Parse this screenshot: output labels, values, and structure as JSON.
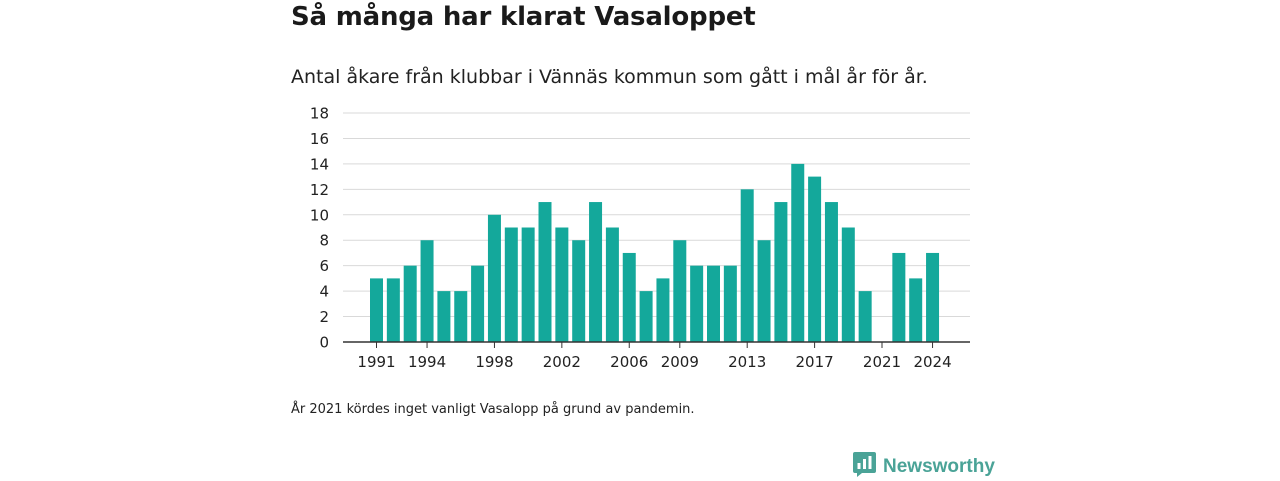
{
  "title": "Så många har klarat Vasaloppet",
  "subtitle": "Antal åkare från klubbar i Vännäs kommun som gått i mål år för år.",
  "footnote": "År 2021 kördes inget vanligt Vasalopp på grund av pandemin.",
  "brand": {
    "name": "Newsworthy",
    "icon": "newsworthy-logo-icon",
    "color": "#4aa397"
  },
  "chart_data": {
    "type": "bar",
    "bar_color": "#14a89b",
    "grid": true,
    "ylim": [
      0,
      18
    ],
    "y_ticks": [
      0,
      2,
      4,
      6,
      8,
      10,
      12,
      14,
      16,
      18
    ],
    "x_tick_labels": [
      "1991",
      "1994",
      "1998",
      "2002",
      "2006",
      "2009",
      "2013",
      "2017",
      "2021",
      "2024"
    ],
    "categories": [
      1991,
      1992,
      1993,
      1994,
      1995,
      1996,
      1997,
      1998,
      1999,
      2000,
      2001,
      2002,
      2003,
      2004,
      2005,
      2006,
      2007,
      2008,
      2009,
      2010,
      2011,
      2012,
      2013,
      2014,
      2015,
      2016,
      2017,
      2018,
      2019,
      2020,
      2021,
      2022,
      2023,
      2024
    ],
    "values": [
      5,
      5,
      6,
      8,
      4,
      4,
      6,
      10,
      9,
      9,
      11,
      9,
      8,
      11,
      9,
      7,
      4,
      5,
      8,
      6,
      6,
      6,
      12,
      8,
      11,
      14,
      13,
      11,
      9,
      4,
      0,
      7,
      5,
      7
    ]
  }
}
